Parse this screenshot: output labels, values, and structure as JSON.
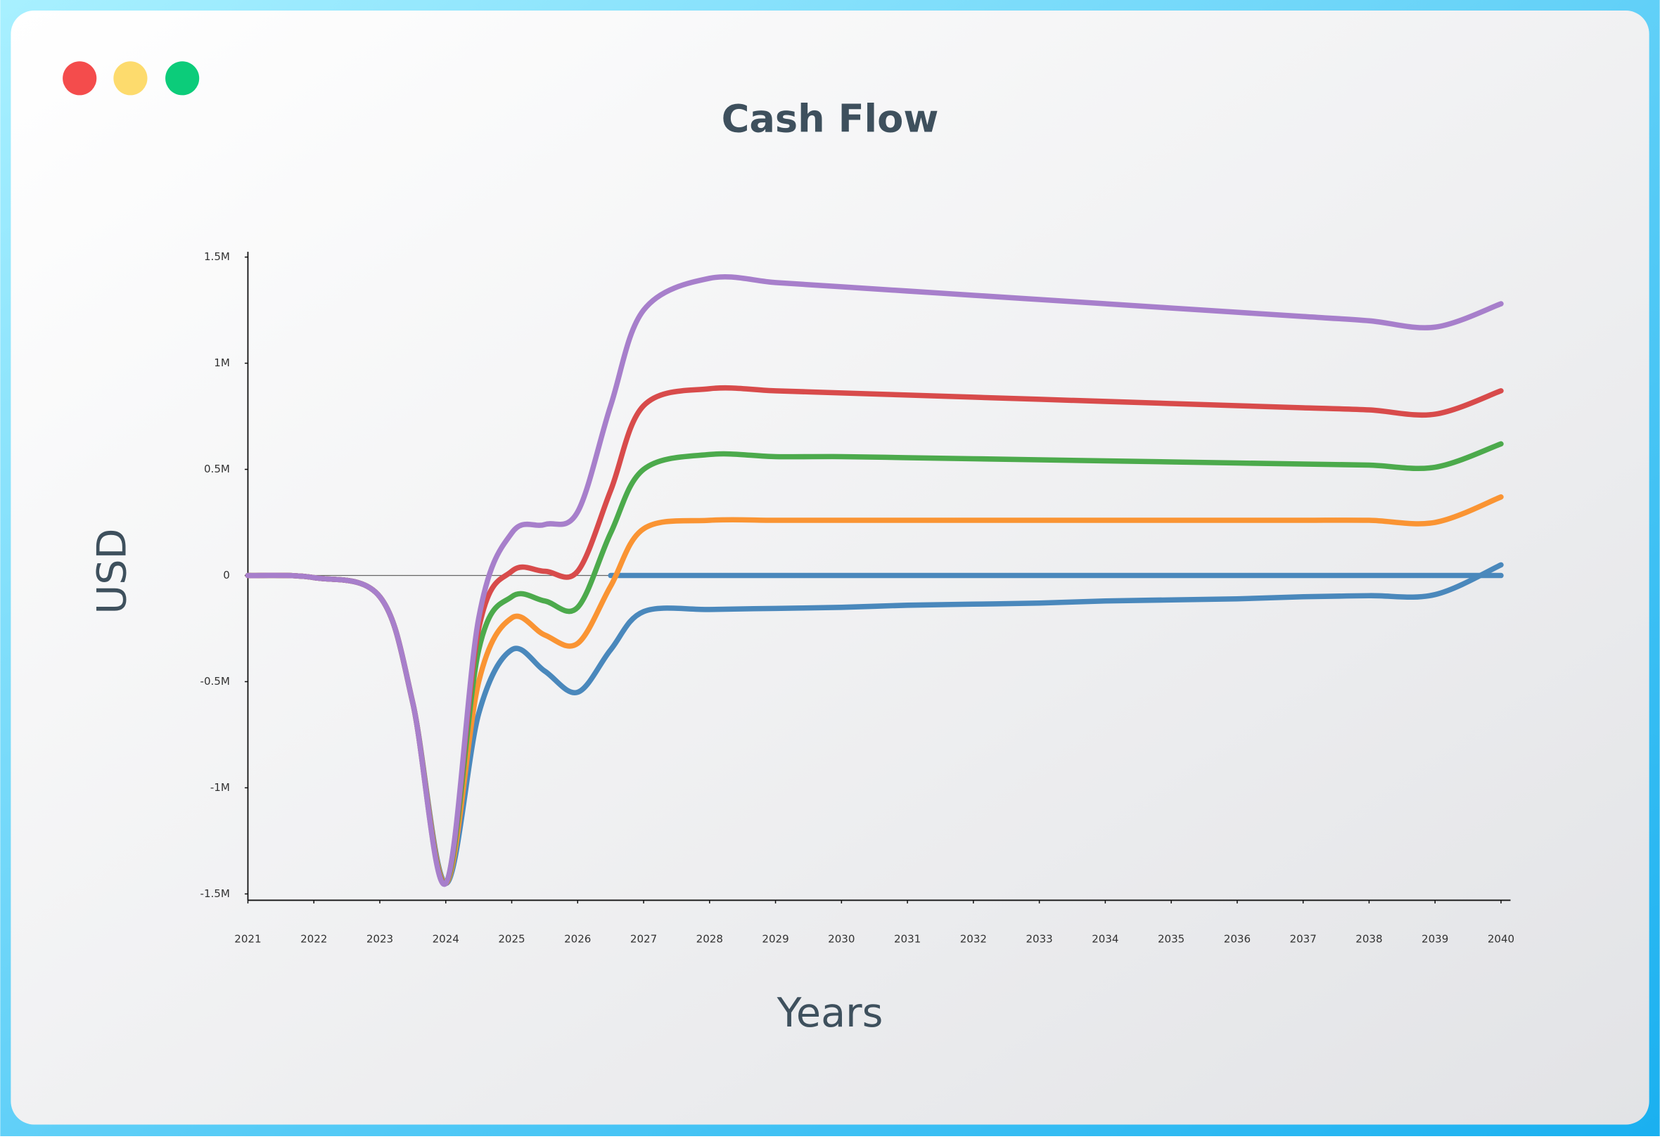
{
  "chart_data": {
    "type": "line",
    "title": "Cash Flow",
    "x_label": "Years",
    "y_label": "USD",
    "x": [
      2021,
      2022,
      2023,
      2023.5,
      2024,
      2024.5,
      2025,
      2025.5,
      2026,
      2026.5,
      2027,
      2028,
      2029,
      2030,
      2031,
      2032,
      2033,
      2034,
      2035,
      2036,
      2037,
      2038,
      2039,
      2040
    ],
    "xlim": [
      2021,
      2040
    ],
    "xticks": [
      2021,
      2022,
      2023,
      2024,
      2025,
      2026,
      2027,
      2028,
      2029,
      2030,
      2031,
      2032,
      2033,
      2034,
      2035,
      2036,
      2037,
      2038,
      2039,
      2040
    ],
    "ylim": [
      -1.5,
      1.5
    ],
    "yticks": [
      {
        "value": -1.5,
        "label": "-1.5M"
      },
      {
        "value": -1,
        "label": "-1M"
      },
      {
        "value": -0.5,
        "label": "-0.5M"
      },
      0,
      {
        "value": 0.5,
        "label": "0.5M"
      },
      {
        "value": 1,
        "label": "1M"
      },
      {
        "value": 1.5,
        "label": "1.5M"
      }
    ],
    "series": [
      {
        "color": "#a77fcb",
        "values": [
          0,
          -0.01,
          -0.1,
          -0.6,
          -1.45,
          -0.2,
          0.2,
          0.24,
          0.3,
          0.8,
          1.25,
          1.4,
          1.38,
          1.36,
          1.34,
          1.32,
          1.3,
          1.28,
          1.26,
          1.24,
          1.22,
          1.2,
          1.17,
          1.28
        ]
      },
      {
        "color": "#d84b4b",
        "values": [
          0,
          -0.01,
          -0.1,
          -0.6,
          -1.45,
          -0.25,
          0.02,
          0.02,
          0.02,
          0.4,
          0.8,
          0.88,
          0.87,
          0.86,
          0.85,
          0.84,
          0.83,
          0.82,
          0.81,
          0.8,
          0.79,
          0.78,
          0.76,
          0.87
        ]
      },
      {
        "color": "#4caa4c",
        "values": [
          0,
          -0.01,
          -0.1,
          -0.6,
          -1.45,
          -0.35,
          -0.1,
          -0.12,
          -0.15,
          0.2,
          0.5,
          0.57,
          0.56,
          0.56,
          0.555,
          0.55,
          0.545,
          0.54,
          0.535,
          0.53,
          0.525,
          0.52,
          0.51,
          0.62
        ]
      },
      {
        "color": "#fa9433",
        "values": [
          0,
          -0.01,
          -0.1,
          -0.6,
          -1.45,
          -0.5,
          -0.2,
          -0.28,
          -0.32,
          -0.05,
          0.22,
          0.26,
          0.26,
          0.26,
          0.26,
          0.26,
          0.26,
          0.26,
          0.26,
          0.26,
          0.26,
          0.26,
          0.25,
          0.37
        ]
      },
      {
        "color": "#4a88bc",
        "values": [
          0,
          -0.01,
          -0.1,
          -0.6,
          -1.45,
          -0.65,
          -0.35,
          -0.45,
          -0.55,
          -0.35,
          -0.17,
          -0.16,
          -0.155,
          -0.15,
          -0.14,
          -0.135,
          -0.13,
          -0.12,
          -0.115,
          -0.11,
          -0.1,
          -0.095,
          -0.09,
          0.05
        ]
      },
      {
        "color": "#4a88bc",
        "values": [
          null,
          null,
          null,
          null,
          null,
          null,
          null,
          null,
          null,
          0,
          0,
          0,
          0,
          0,
          0,
          0,
          0,
          0,
          0,
          0,
          0,
          0,
          0,
          0
        ]
      }
    ]
  }
}
